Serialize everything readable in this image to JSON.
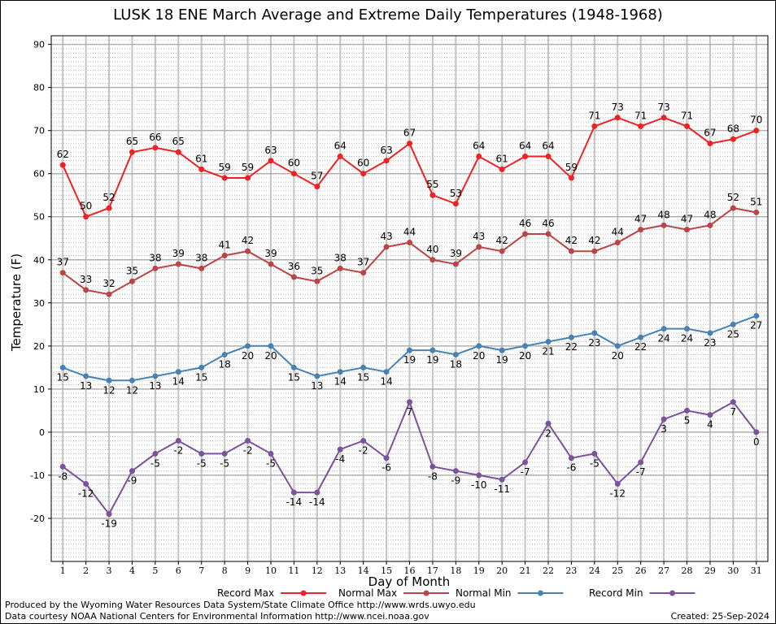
{
  "chart_data": {
    "type": "line",
    "title": "LUSK 18 ENE March Average and Extreme Daily Temperatures (1948-1968)",
    "xlabel": "Day of Month",
    "ylabel": "Temperature (F)",
    "x": [
      1,
      2,
      3,
      4,
      5,
      6,
      7,
      8,
      9,
      10,
      11,
      12,
      13,
      14,
      15,
      16,
      17,
      18,
      19,
      20,
      21,
      22,
      23,
      24,
      25,
      26,
      27,
      28,
      29,
      30,
      31
    ],
    "ylim": [
      -30,
      92
    ],
    "yticks": [
      -20,
      -10,
      0,
      10,
      20,
      30,
      40,
      50,
      60,
      70,
      80,
      90
    ],
    "grid": true,
    "legend_position": "bottom",
    "series": [
      {
        "name": "Record Max",
        "color": "#ee2222",
        "values": [
          62,
          50,
          52,
          65,
          66,
          65,
          61,
          59,
          59,
          63,
          60,
          57,
          64,
          60,
          63,
          67,
          55,
          53,
          64,
          61,
          64,
          64,
          59,
          71,
          73,
          71,
          73,
          71,
          67,
          68,
          70
        ]
      },
      {
        "name": "Normal Max",
        "color": "#bb4444",
        "values": [
          37,
          33,
          32,
          35,
          38,
          39,
          38,
          41,
          42,
          39,
          36,
          35,
          38,
          37,
          43,
          44,
          40,
          39,
          43,
          42,
          46,
          46,
          42,
          42,
          44,
          47,
          48,
          47,
          48,
          52,
          51
        ]
      },
      {
        "name": "Normal Min",
        "color": "#4682b4",
        "values": [
          15,
          13,
          12,
          12,
          13,
          14,
          15,
          18,
          20,
          20,
          15,
          13,
          14,
          15,
          14,
          19,
          19,
          18,
          20,
          19,
          20,
          21,
          22,
          23,
          20,
          22,
          24,
          24,
          23,
          25,
          27
        ]
      },
      {
        "name": "Record Min",
        "color": "#7b529b",
        "values": [
          -8,
          -12,
          -19,
          -9,
          -5,
          -2,
          -5,
          -5,
          -2,
          -5,
          -14,
          -14,
          -4,
          -2,
          -6,
          7,
          -8,
          -9,
          -10,
          -11,
          -7,
          2,
          -6,
          -5,
          -12,
          -7,
          3,
          5,
          4,
          7,
          0
        ]
      }
    ]
  },
  "footer": {
    "produced_by": "Produced by the Wyoming Water Resources Data System/State Climate Office http://www.wrds.uwyo.edu",
    "courtesy": "Data courtesy NOAA National Centers for Environmental Information http://www.ncei.noaa.gov",
    "created": "Created:  25-Sep-2024"
  }
}
